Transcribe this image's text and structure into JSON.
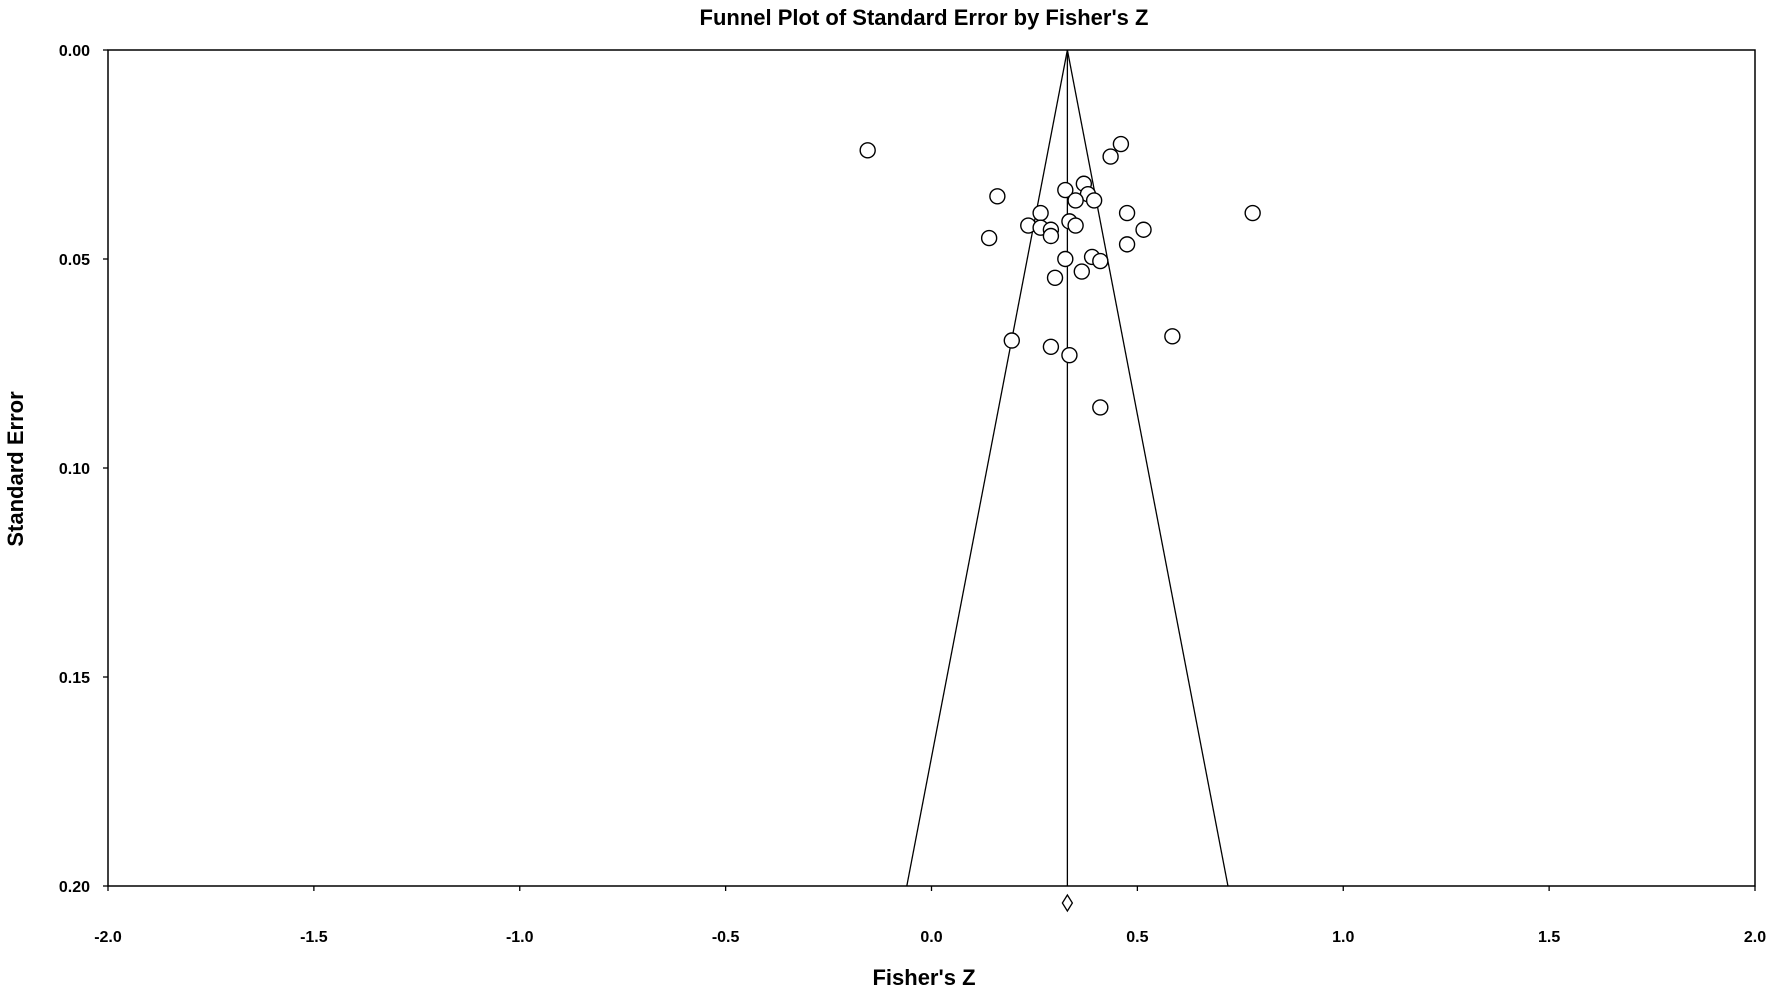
{
  "chart_data": {
    "type": "scatter",
    "title": "Funnel Plot of Standard Error by Fisher's Z",
    "xlabel": "Fisher's Z",
    "ylabel": "Standard Error",
    "xlim": [
      -2.0,
      2.0
    ],
    "ylim": [
      0.0,
      0.2
    ],
    "y_inverted": true,
    "x_ticks": [
      "-2.0",
      "-1.5",
      "-1.0",
      "-0.5",
      "0.0",
      "0.5",
      "1.0",
      "1.5",
      "2.0"
    ],
    "y_ticks": [
      "0.00",
      "0.05",
      "0.10",
      "0.15",
      "0.20"
    ],
    "grid": false,
    "legend": "none",
    "summary_effect": 0.33,
    "funnel_limits": {
      "se_max": 0.2,
      "lower_at_se_max": -0.06,
      "upper_at_se_max": 0.72
    },
    "points": [
      {
        "x": -0.155,
        "y": 0.024
      },
      {
        "x": 0.46,
        "y": 0.0225
      },
      {
        "x": 0.435,
        "y": 0.0255
      },
      {
        "x": 0.37,
        "y": 0.032
      },
      {
        "x": 0.325,
        "y": 0.0335
      },
      {
        "x": 0.38,
        "y": 0.0345
      },
      {
        "x": 0.395,
        "y": 0.036
      },
      {
        "x": 0.35,
        "y": 0.036
      },
      {
        "x": 0.16,
        "y": 0.035
      },
      {
        "x": 0.265,
        "y": 0.039
      },
      {
        "x": 0.475,
        "y": 0.039
      },
      {
        "x": 0.78,
        "y": 0.039
      },
      {
        "x": 0.335,
        "y": 0.041
      },
      {
        "x": 0.35,
        "y": 0.042
      },
      {
        "x": 0.235,
        "y": 0.042
      },
      {
        "x": 0.265,
        "y": 0.0425
      },
      {
        "x": 0.29,
        "y": 0.043
      },
      {
        "x": 0.29,
        "y": 0.0445
      },
      {
        "x": 0.515,
        "y": 0.043
      },
      {
        "x": 0.14,
        "y": 0.045
      },
      {
        "x": 0.475,
        "y": 0.0465
      },
      {
        "x": 0.39,
        "y": 0.0495
      },
      {
        "x": 0.325,
        "y": 0.05
      },
      {
        "x": 0.41,
        "y": 0.0505
      },
      {
        "x": 0.365,
        "y": 0.053
      },
      {
        "x": 0.3,
        "y": 0.0545
      },
      {
        "x": 0.195,
        "y": 0.0695
      },
      {
        "x": 0.585,
        "y": 0.0685
      },
      {
        "x": 0.29,
        "y": 0.071
      },
      {
        "x": 0.335,
        "y": 0.073
      },
      {
        "x": 0.41,
        "y": 0.0855
      }
    ]
  }
}
